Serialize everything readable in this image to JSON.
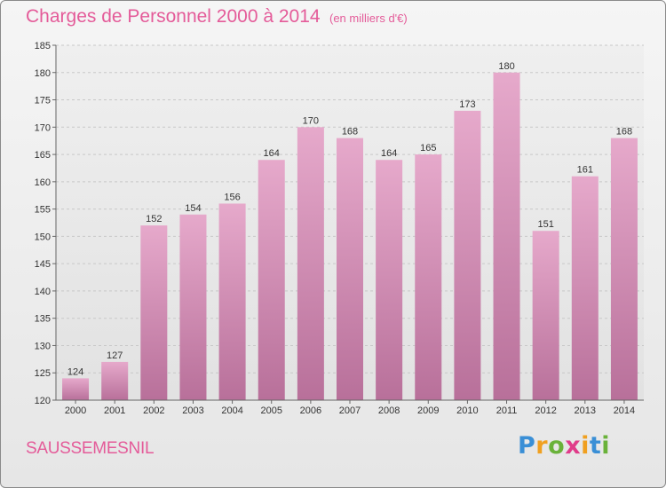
{
  "header": {
    "title": "Charges de Personnel 2000 à 2014",
    "subtitle": "(en milliers d'€)"
  },
  "footer": {
    "place": "SAUSSEMESNIL",
    "logo_letters": [
      "P",
      "r",
      "o",
      "x",
      "i",
      "t",
      "i"
    ],
    "logo_colors": [
      "#3a8fd6",
      "#f0a020",
      "#6ab23a",
      "#e03c8a",
      "#f0a020",
      "#3a8fd6",
      "#6ab23a"
    ]
  },
  "colors": {
    "bar_top": "#e6a9cb",
    "bar_bottom": "#b8709a",
    "grid": "#c8c8c8"
  },
  "chart_data": {
    "type": "bar",
    "categories": [
      "2000",
      "2001",
      "2002",
      "2003",
      "2004",
      "2005",
      "2006",
      "2007",
      "2008",
      "2009",
      "2010",
      "2011",
      "2012",
      "2013",
      "2014"
    ],
    "values": [
      124,
      127,
      152,
      154,
      156,
      164,
      170,
      168,
      164,
      165,
      173,
      180,
      151,
      161,
      168
    ],
    "title": "Charges de Personnel 2000 à 2014",
    "subtitle": "(en milliers d'€)",
    "xlabel": "",
    "ylabel": "",
    "ylim": [
      120,
      185
    ],
    "yticks": [
      120,
      125,
      130,
      135,
      140,
      145,
      150,
      155,
      160,
      165,
      170,
      175,
      180,
      185
    ],
    "grid": true,
    "data_labels": true
  }
}
